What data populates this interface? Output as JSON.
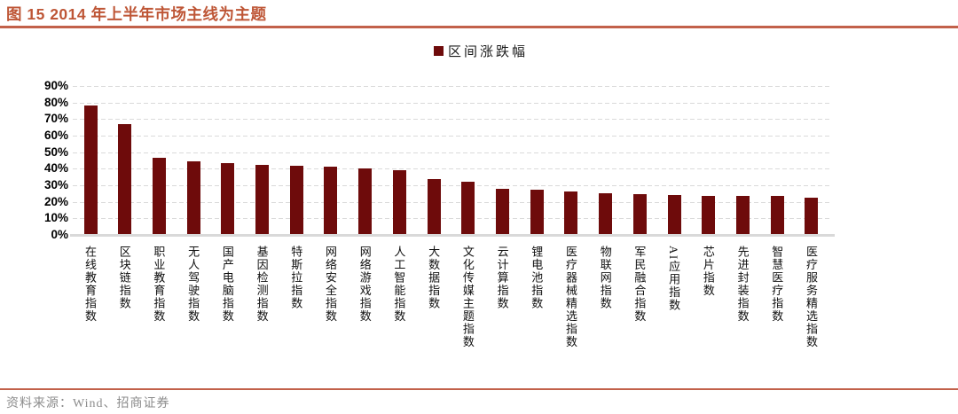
{
  "header": {
    "title": "图 15 2014 年上半年市场主线为主题"
  },
  "legend": {
    "label": "区间涨跌幅"
  },
  "footer": {
    "source": "资料来源：Wind、招商证券"
  },
  "colors": {
    "bar": "#6E0B0B",
    "accent": "#C2614A",
    "title_text": "#BE5636",
    "grid": "#DADADA",
    "baseline": "#D9D9D9",
    "axis_text": "#000000",
    "footer_text": "#8C8C8C"
  },
  "chart_data": {
    "type": "bar",
    "title": "图 15 2014 年上半年市场主线为主题",
    "legend_entries": [
      "区间涨跌幅"
    ],
    "legend_position": "top-center",
    "grid": "horizontal-dashed",
    "ylim": [
      0,
      90
    ],
    "ytick_labels": [
      "0%",
      "10%",
      "20%",
      "30%",
      "40%",
      "50%",
      "60%",
      "70%",
      "80%",
      "90%"
    ],
    "categories": [
      "在线教育指数",
      "区块链指数",
      "职业教育指数",
      "无人驾驶指数",
      "国产电脑指数",
      "基因检测指数",
      "特斯拉指数",
      "网络安全指数",
      "网络游戏指数",
      "人工智能指数",
      "大数据指数",
      "文化传媒主题指数",
      "云计算指数",
      "锂电池指数",
      "医疗器械精选指数",
      "物联网指数",
      "军民融合指数",
      "AI应用指数",
      "芯片指数",
      "先进封装指数",
      "智慧医疗指数",
      "医疗服务精选指数"
    ],
    "values": [
      77.5,
      66.5,
      46.0,
      44.0,
      43.0,
      42.0,
      41.5,
      40.8,
      39.5,
      38.8,
      33.2,
      31.5,
      27.3,
      26.6,
      25.8,
      24.6,
      23.9,
      23.8,
      23.2,
      23.0,
      22.9,
      22.0
    ],
    "unit": "%"
  }
}
